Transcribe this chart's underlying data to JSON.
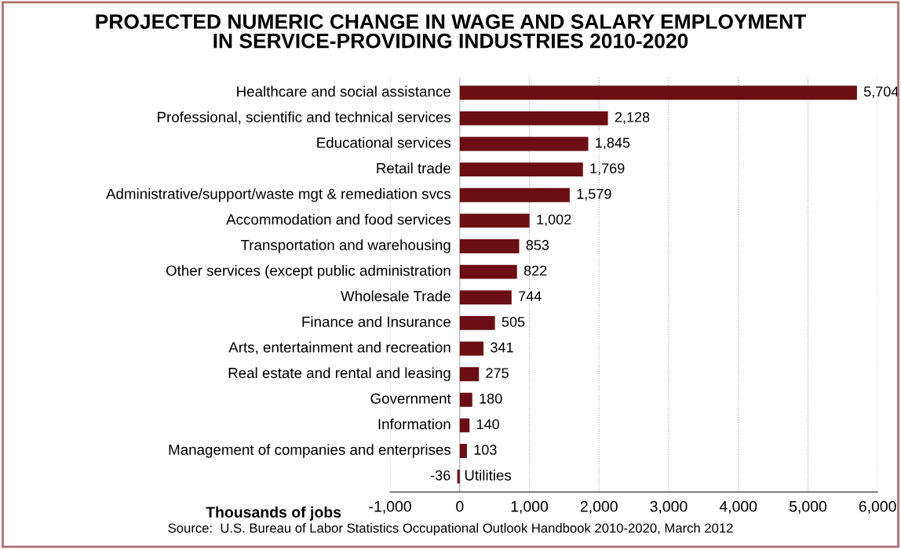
{
  "chart_data": {
    "type": "bar",
    "orientation": "horizontal",
    "title": "PROJECTED NUMERIC CHANGE IN WAGE AND SALARY EMPLOYMENT\nIN SERVICE-PROVIDING INDUSTRIES 2010-2020",
    "xlabel": "Thousands of jobs",
    "categories": [
      "Healthcare and social assistance",
      "Professional, scientific and technical services",
      "Educational services",
      "Retail trade",
      "Administrative/support/waste mgt & remediation svcs",
      "Accommodation and food services",
      "Transportation and warehousing",
      "Other services (except public administration",
      "Wholesale Trade",
      "Finance and Insurance",
      "Arts, entertainment and recreation",
      "Real estate and rental and leasing",
      "Government",
      "Information",
      "Management of companies and enterprises",
      "Utilities"
    ],
    "values": [
      5704,
      2128,
      1845,
      1769,
      1579,
      1002,
      853,
      822,
      744,
      505,
      341,
      275,
      180,
      140,
      103,
      -36
    ],
    "value_labels": [
      "5,704",
      "2,128",
      "1,845",
      "1,769",
      "1,579",
      "1,002",
      "853",
      "822",
      "744",
      "505",
      "341",
      "275",
      "180",
      "140",
      "103",
      "-36"
    ],
    "color": "#6b0f14",
    "xlim": [
      -1000,
      6000
    ],
    "xticks": [
      {
        "value": -1000,
        "label": "-1,000"
      },
      0,
      {
        "value": 1000,
        "label": "1,000"
      },
      {
        "value": 2000,
        "label": "2,000"
      },
      {
        "value": 3000,
        "label": "3,000"
      },
      {
        "value": 4000,
        "label": "4,000"
      },
      {
        "value": 5000,
        "label": "5,000"
      },
      {
        "value": 6000,
        "label": "6,000"
      }
    ],
    "grid": "x",
    "annotations": [
      "Source:  U.S. Bureau of Labor Statistics Occupational Outlook Handbook 2010-2020, March 2012"
    ]
  }
}
